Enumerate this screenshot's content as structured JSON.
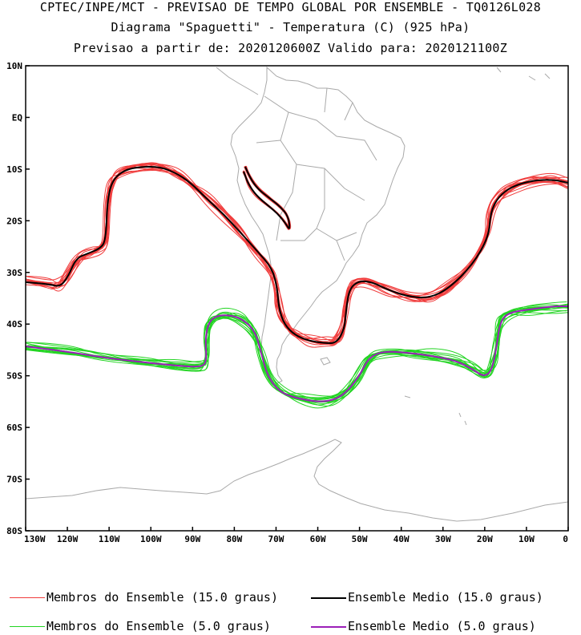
{
  "header": {
    "line1": "CPTEC/INPE/MCT - PREVISAO DE TEMPO GLOBAL POR ENSEMBLE - TQ0126L028",
    "line2": "Diagrama \"Spaguetti\" - Temperatura (C) (925 hPa)",
    "line3": "Previsao a partir de: 2020120600Z  Valido para: 2020121100Z"
  },
  "map": {
    "lon_range": [
      -130,
      0
    ],
    "lat_range": [
      -80,
      10
    ],
    "lat_ticks": [
      "10N",
      "EQ",
      "10S",
      "20S",
      "30S",
      "40S",
      "50S",
      "60S",
      "70S",
      "80S"
    ],
    "lon_ticks": [
      "130W",
      "120W",
      "110W",
      "100W",
      "90W",
      "80W",
      "70W",
      "60W",
      "50W",
      "40W",
      "30W",
      "20W",
      "10W",
      "0"
    ],
    "colors": {
      "members_15": "#f03c3c",
      "mean_15": "#000000",
      "members_5": "#22d422",
      "mean_5": "#9b1fb8",
      "coastline": "#a9a9a9"
    }
  },
  "legend": {
    "members_15": "Membros do Ensemble (15.0 graus)",
    "mean_15": "Ensemble Medio (15.0 graus)",
    "members_5": "Membros do Ensemble (5.0 graus)",
    "mean_5": "Ensemble Medio (5.0 graus)"
  }
}
